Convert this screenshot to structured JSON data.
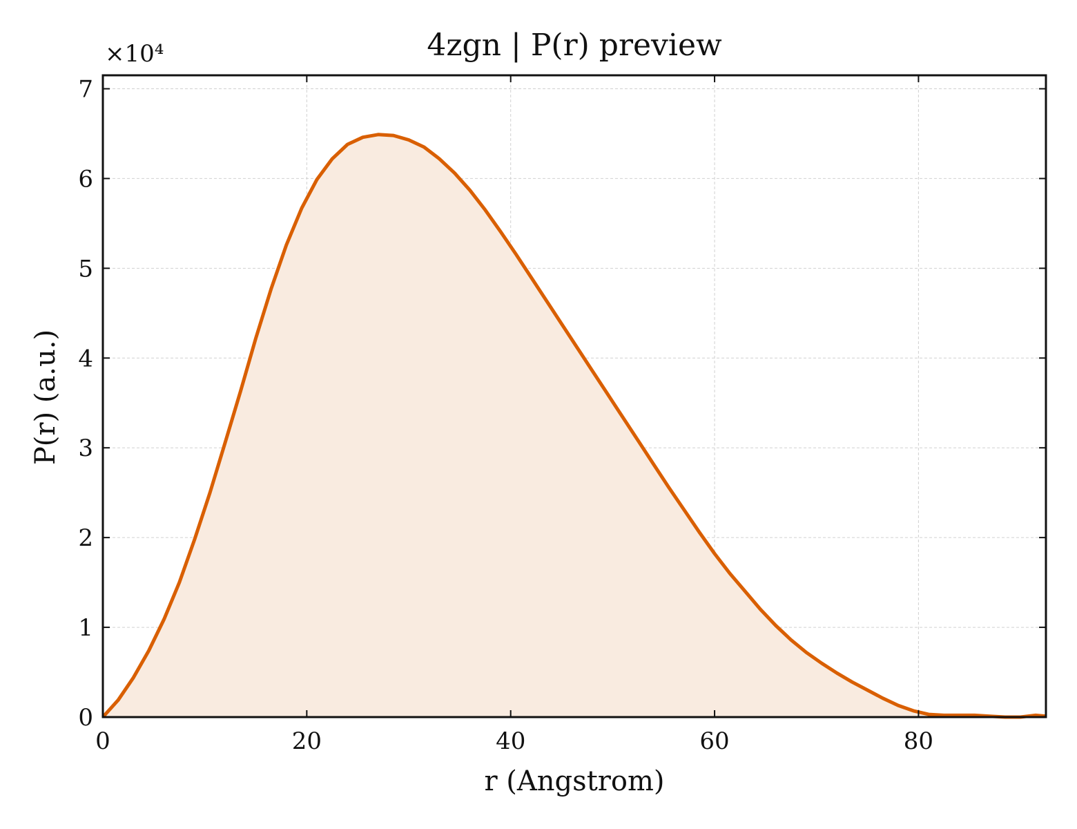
{
  "chart_data": {
    "type": "area",
    "title": "4zgn | P(r) preview",
    "xlabel": "r (Angstrom)",
    "ylabel": "P(r) (a.u.)",
    "y_multiplier": "×10⁴",
    "xlim": [
      0,
      92.5
    ],
    "ylim": [
      0,
      71500
    ],
    "x_ticks": [
      0,
      20,
      40,
      60,
      80
    ],
    "y_ticks": [
      0,
      10000,
      20000,
      30000,
      40000,
      50000,
      60000,
      70000
    ],
    "y_tick_labels": [
      "0",
      "1",
      "2",
      "3",
      "4",
      "5",
      "6",
      "7"
    ],
    "grid": true,
    "line_color": "#d95f02",
    "fill_color": "#f9ebe0",
    "series": [
      {
        "x": [
          0,
          1.5,
          3,
          4.5,
          6,
          7.5,
          9,
          10.5,
          12,
          13.5,
          15,
          16.5,
          18,
          19.5,
          21,
          22.5,
          24,
          25.5,
          27,
          28.5,
          30,
          31.5,
          33,
          34.5,
          36,
          37.5,
          39,
          40.5,
          42,
          43.5,
          45,
          46.5,
          48,
          49.5,
          51,
          52.5,
          54,
          55.5,
          57,
          58.5,
          60,
          61.5,
          63,
          64.5,
          66,
          67.5,
          69,
          70.5,
          72,
          73.5,
          75,
          76.5,
          78,
          79.5,
          81,
          82.5,
          84,
          85.5,
          87,
          88.5,
          90,
          91.5,
          92.5
        ],
        "y": [
          0,
          1900,
          4400,
          7400,
          10900,
          15000,
          19800,
          25000,
          30600,
          36300,
          42200,
          47700,
          52600,
          56700,
          59900,
          62200,
          63800,
          64600,
          64900,
          64800,
          64300,
          63500,
          62200,
          60600,
          58700,
          56500,
          54100,
          51600,
          49000,
          46400,
          43800,
          41200,
          38600,
          36000,
          33400,
          30800,
          28200,
          25600,
          23100,
          20600,
          18200,
          16000,
          14000,
          12000,
          10200,
          8600,
          7200,
          6000,
          4900,
          3900,
          3000,
          2100,
          1300,
          700,
          300,
          200,
          200,
          200,
          100,
          0,
          0,
          200,
          100
        ]
      }
    ]
  }
}
